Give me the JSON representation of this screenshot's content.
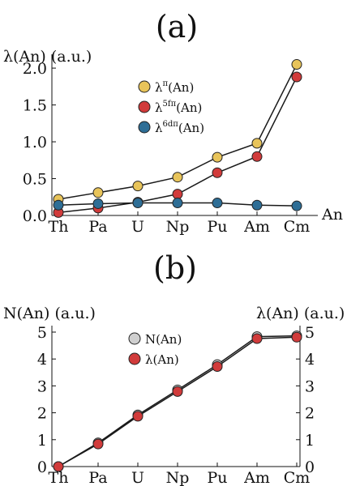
{
  "chart_data": [
    {
      "panel_label": "(a)",
      "type": "line",
      "categories": [
        "Th",
        "Pa",
        "U",
        "Np",
        "Pu",
        "Am",
        "Cm"
      ],
      "ylabel": "λ(An) (a.u.)",
      "xlabel": "An",
      "ylim": [
        0,
        2.1
      ],
      "yticks": [
        "0.0",
        "0.5",
        "1.0",
        "1.5",
        "2.0"
      ],
      "grid": false,
      "legend_position": "top-center",
      "series": [
        {
          "name": "λ^π(An)",
          "base": "λ",
          "sup": "π",
          "tail": "(An)",
          "color": "#e8c45a",
          "values": [
            0.22,
            0.31,
            0.4,
            0.52,
            0.79,
            0.98,
            2.05
          ]
        },
        {
          "name": "λ^5fπ(An)",
          "base": "λ",
          "sup": "5fπ",
          "tail": "(An)",
          "color": "#d13b3b",
          "values": [
            0.04,
            0.1,
            0.18,
            0.29,
            0.58,
            0.8,
            1.88
          ]
        },
        {
          "name": "λ^6dπ(An)",
          "base": "λ",
          "sup": "6dπ",
          "tail": "(An)",
          "color": "#2e6e96",
          "values": [
            0.14,
            0.16,
            0.17,
            0.17,
            0.17,
            0.14,
            0.13
          ]
        }
      ]
    },
    {
      "panel_label": "(b)",
      "type": "line",
      "categories": [
        "Th",
        "Pa",
        "U",
        "Np",
        "Pu",
        "Am",
        "Cm"
      ],
      "ylabel": "N(An) (a.u.)",
      "y2label": "λ(An) (a.u.)",
      "ylim": [
        0,
        5
      ],
      "yticks": [
        "0",
        "1",
        "2",
        "3",
        "4",
        "5"
      ],
      "grid": false,
      "legend_position": "top-center",
      "series": [
        {
          "name": "N(An)",
          "color": "#cfcfcf",
          "values": [
            0.0,
            0.88,
            1.92,
            2.85,
            3.79,
            4.83,
            4.86
          ]
        },
        {
          "name": "λ(An)",
          "color": "#d13b3b",
          "values": [
            0.0,
            0.84,
            1.87,
            2.79,
            3.72,
            4.76,
            4.81
          ]
        }
      ]
    }
  ]
}
